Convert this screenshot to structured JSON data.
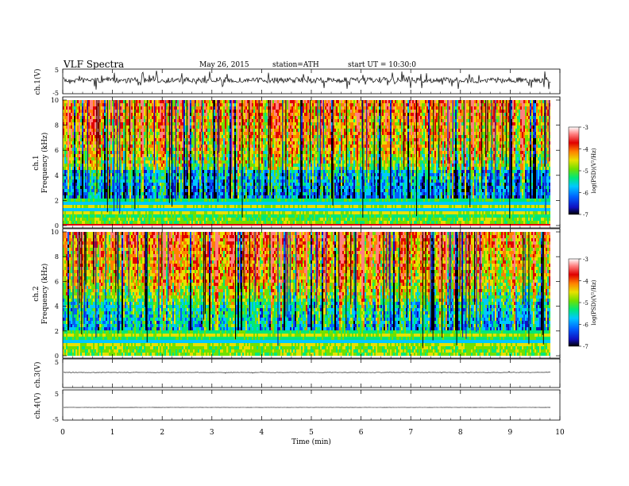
{
  "header": {
    "title": "VLF  Spectra",
    "date": "May 26, 2015",
    "station": "station=ATH",
    "start": "start  UT  =    10:30:0"
  },
  "chart_data": [
    {
      "type": "line",
      "ylabel": "ch.1(V)",
      "ylim": [
        -5,
        5
      ],
      "yticks": [
        "5",
        "-5"
      ],
      "trace": "noisy"
    },
    {
      "type": "heatmap",
      "ylabel_top": "ch.1",
      "ylabel": "Frequency  (kHz)",
      "ylim": [
        0,
        10
      ],
      "yticks": [
        "0",
        "2",
        "4",
        "6",
        "8",
        "10"
      ],
      "colorbar": {
        "label": "log(PSD)(V²/Hz)",
        "range": [
          -7,
          -3
        ],
        "ticks": [
          "-3",
          "-4",
          "-5",
          "-6",
          "-7"
        ]
      }
    },
    {
      "type": "heatmap",
      "ylabel_top": "ch.2",
      "ylabel": "Frequency  (kHz)",
      "ylim": [
        0,
        10
      ],
      "yticks": [
        "0",
        "2",
        "4",
        "6",
        "8",
        "10"
      ],
      "colorbar": {
        "label": "log(PSD)(V²/Hz)",
        "range": [
          -7,
          -3
        ],
        "ticks": [
          "-3",
          "-4",
          "-5",
          "-6",
          "-7"
        ]
      }
    },
    {
      "type": "line",
      "ylabel": "ch.3(V)",
      "ylim": [
        -5,
        5
      ],
      "yticks": [
        "5"
      ],
      "trace": "flat"
    },
    {
      "type": "line",
      "ylabel": "ch.4(V)",
      "ylim": [
        -5,
        5
      ],
      "yticks": [
        "5",
        "-5"
      ],
      "trace": "flat"
    }
  ],
  "xaxis": {
    "label": "Time  (min)",
    "xlim": [
      0,
      10
    ],
    "ticks": [
      "0",
      "1",
      "2",
      "3",
      "4",
      "5",
      "6",
      "7",
      "8",
      "9",
      "10"
    ],
    "data_end": 9.82
  },
  "colors": {
    "scale": [
      "#000000",
      "#1010c0",
      "#0060ff",
      "#00c8ff",
      "#00e878",
      "#70e000",
      "#e8e000",
      "#ff8000",
      "#e00000",
      "#ff8080",
      "#ffffff"
    ]
  }
}
